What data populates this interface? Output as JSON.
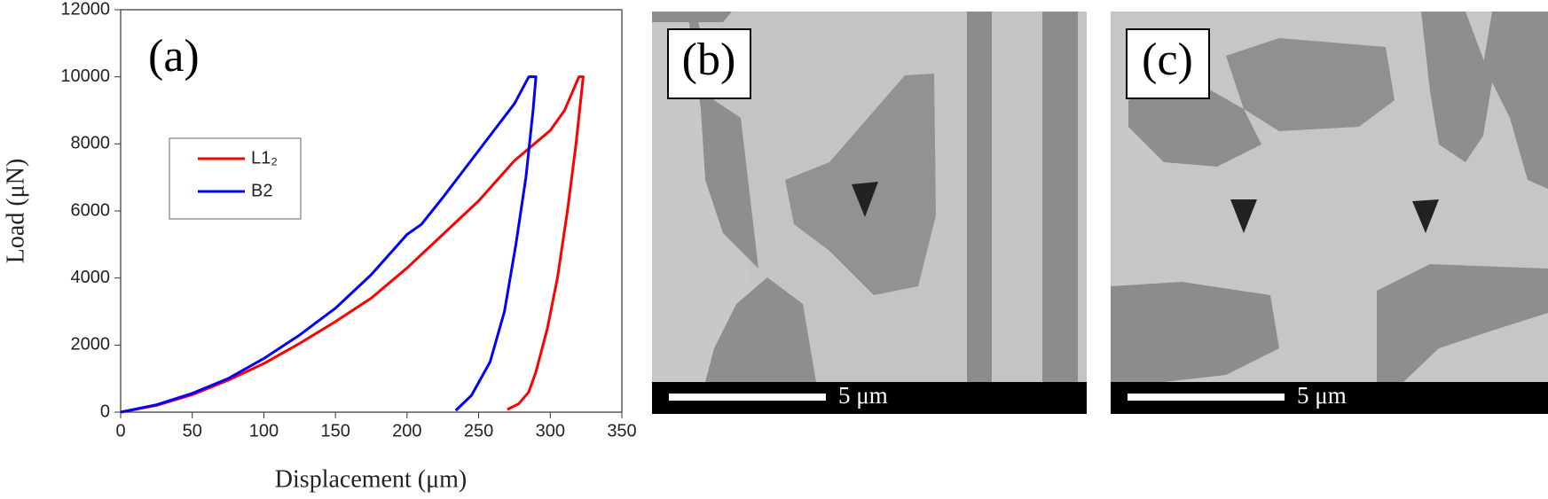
{
  "chart_data": {
    "type": "line",
    "panel_label": "(a)",
    "x_label": "Displacement (μm)",
    "y_label": "Load (μN)",
    "xlim": [
      0,
      350
    ],
    "xticks": [
      0,
      50,
      100,
      150,
      200,
      250,
      300,
      350
    ],
    "ylim": [
      0,
      12000
    ],
    "yticks": [
      0,
      2000,
      4000,
      6000,
      8000,
      10000,
      12000
    ],
    "grid": false,
    "legend": "upper left",
    "series": [
      {
        "name": "L1₂",
        "color": "#ff0000",
        "x": [
          0,
          25,
          50,
          75,
          100,
          125,
          150,
          175,
          200,
          225,
          250,
          275,
          300,
          310,
          320,
          323,
          318,
          312,
          305,
          298,
          290,
          285,
          278,
          270
        ],
        "values": [
          0,
          200,
          520,
          950,
          1450,
          2050,
          2700,
          3400,
          4300,
          5300,
          6300,
          7500,
          8400,
          9000,
          10000,
          10000,
          8000,
          6000,
          4000,
          2500,
          1200,
          600,
          250,
          80
        ]
      },
      {
        "name": "B2",
        "color": "#0000ff",
        "x": [
          0,
          25,
          50,
          75,
          100,
          125,
          150,
          175,
          200,
          210,
          225,
          250,
          275,
          285,
          290,
          288,
          283,
          276,
          268,
          258,
          245,
          234
        ],
        "values": [
          0,
          220,
          560,
          1000,
          1600,
          2300,
          3100,
          4100,
          5300,
          5600,
          6400,
          7800,
          9200,
          10000,
          10000,
          9000,
          7000,
          5000,
          3000,
          1500,
          500,
          50
        ]
      }
    ]
  },
  "images": [
    {
      "label": "(b)",
      "scale_bar": "5 μm"
    },
    {
      "label": "(c)",
      "scale_bar": "5 μm"
    }
  ]
}
